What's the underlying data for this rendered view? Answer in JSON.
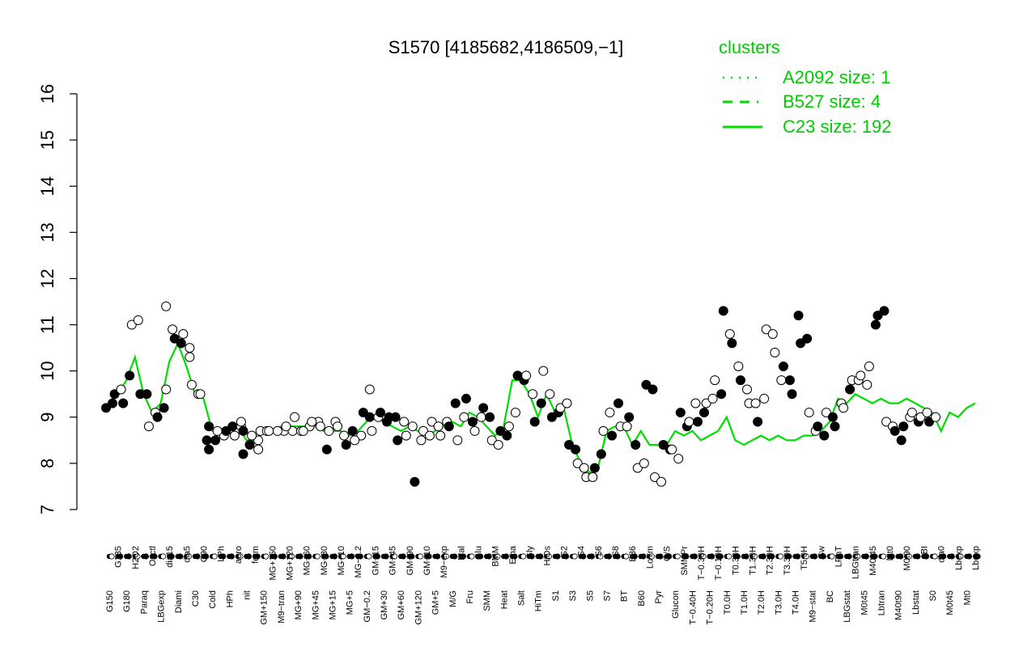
{
  "chart_data": {
    "type": "line",
    "title": "S1570 [4185682,4186509,−1]",
    "xlabel": "",
    "ylabel": "",
    "ylim": [
      7,
      16
    ],
    "yticks": [
      7,
      8,
      9,
      10,
      11,
      12,
      13,
      14,
      15,
      16
    ],
    "grid": false,
    "legend_position": "top-right",
    "legend": {
      "title": "clusters",
      "entries": [
        {
          "label": "A2092 size: 1",
          "style": "dotted"
        },
        {
          "label": "B527 size: 4",
          "style": "dashed"
        },
        {
          "label": "C23 size: 192",
          "style": "solid"
        }
      ]
    },
    "colors": {
      "line": "#00dd00",
      "legend": "#00cc00",
      "filled_point": "#000000",
      "open_point": "#ffffff"
    },
    "x_tick_labels": [
      "G150",
      "G135",
      "G180",
      "H2O2",
      "Paraq",
      "Oxctl",
      "LBGexp",
      "dia15",
      "Diami",
      "dia5",
      "C30",
      "C90",
      "Cold",
      "LPh",
      "HPh",
      "aero",
      "nit",
      "ferm",
      "GM+150",
      "MG+150",
      "M9−tran",
      "MG+120",
      "MG+90",
      "MG+60",
      "MG+45",
      "MG+30",
      "MG+15",
      "MG+10",
      "MG+5",
      "MG−0.2",
      "GM−0.2",
      "GM+15",
      "GM+30",
      "GM+45",
      "GM+60",
      "GM+90",
      "GM+120",
      "GM+10",
      "GM+5",
      "M9−exp",
      "M/G",
      "Mal",
      "Fru",
      "Glu",
      "SMM",
      "BMM",
      "Heat",
      "Etha",
      "Salt",
      "Gly",
      "HiTm",
      "HiOs",
      "S1",
      "S2",
      "S3",
      "S4",
      "S5",
      "S6",
      "S7",
      "S8",
      "BT",
      "B36",
      "B60",
      "LoTm",
      "Pyr",
      "G/S",
      "Glucon",
      "SMMPr",
      "T−0.40H",
      "T−0.30H",
      "T−0.20H",
      "T−0.10H",
      "T0.0H",
      "T0.30H",
      "T1.0H",
      "T1.30H",
      "T2.0H",
      "T2.30H",
      "T3.0H",
      "T3.30H",
      "T4.0H",
      "T5.0H",
      "M9−stat",
      "Sw",
      "BC",
      "LPhT",
      "LBGstat",
      "LBGtran",
      "M0t45",
      "M40t45",
      "Lbtran",
      "Mt0",
      "M40t90",
      "M0t90",
      "Lbstat",
      "BI",
      "S0",
      "dia0",
      "M0t45",
      "Lbexp",
      "Mt0",
      "Lbexp"
    ],
    "series": [
      {
        "values": [
          9.3,
          9.5,
          9.8,
          10.3,
          9.5,
          9.1,
          9.3,
          10.2,
          10.6,
          10.1,
          9.5,
          9.4,
          8.7,
          8.7,
          8.8,
          8.8,
          8.5,
          8.5,
          8.7,
          8.7,
          8.8,
          8.8,
          8.8,
          8.8,
          8.8,
          8.7,
          8.7,
          8.7,
          8.6,
          8.7,
          8.9,
          9.0,
          8.9,
          8.8,
          8.7,
          8.8,
          8.7,
          8.6,
          8.7,
          8.8,
          8.9,
          8.8,
          9.1,
          9.0,
          8.8,
          8.6,
          8.8,
          9.8,
          9.8,
          9.5,
          9.0,
          9.5,
          9.1,
          9.2,
          8.4,
          8.0,
          7.8,
          7.9,
          8.7,
          8.8,
          8.8,
          8.4,
          8.7,
          8.4,
          8.4,
          8.4,
          8.7,
          8.6,
          8.7,
          8.5,
          8.6,
          8.7,
          9.0,
          8.5,
          8.4,
          8.5,
          8.6,
          8.5,
          8.6,
          8.5,
          8.5,
          8.6,
          8.6,
          8.7,
          8.9,
          9.4,
          9.3,
          9.5,
          9.4,
          9.3,
          9.4,
          9.3,
          9.3,
          9.4,
          9.3,
          9.2,
          9.1,
          8.7,
          9.1,
          9.0,
          9.2,
          9.3
        ]
      }
    ],
    "points": [
      [
        0,
        9.2,
        1
      ],
      [
        0,
        9.3,
        1
      ],
      [
        1,
        9.5,
        1
      ],
      [
        1,
        9.6,
        0
      ],
      [
        2,
        9.3,
        1
      ],
      [
        2,
        9.9,
        1
      ],
      [
        3,
        11.0,
        0
      ],
      [
        3,
        11.1,
        0
      ],
      [
        4,
        9.5,
        1
      ],
      [
        4,
        9.5,
        1
      ],
      [
        5,
        8.8,
        0
      ],
      [
        5,
        9.1,
        0
      ],
      [
        6,
        9.0,
        1
      ],
      [
        6,
        9.2,
        1
      ],
      [
        7,
        9.6,
        0
      ],
      [
        7,
        10.9,
        0
      ],
      [
        7,
        11.4,
        0
      ],
      [
        8,
        10.6,
        1
      ],
      [
        8,
        10.7,
        1
      ],
      [
        9,
        10.5,
        0
      ],
      [
        9,
        10.8,
        0
      ],
      [
        9,
        10.3,
        0
      ],
      [
        10,
        9.7,
        0
      ],
      [
        10,
        9.5,
        0
      ],
      [
        11,
        9.5,
        0
      ],
      [
        11,
        8.5,
        1
      ],
      [
        12,
        8.8,
        1
      ],
      [
        12,
        8.5,
        1
      ],
      [
        12,
        8.3,
        1
      ],
      [
        13,
        8.6,
        0
      ],
      [
        13,
        8.7,
        0
      ],
      [
        14,
        8.8,
        1
      ],
      [
        14,
        8.7,
        1
      ],
      [
        15,
        8.8,
        0
      ],
      [
        15,
        8.6,
        0
      ],
      [
        15,
        8.9,
        0
      ],
      [
        16,
        8.7,
        1
      ],
      [
        16,
        8.4,
        1
      ],
      [
        16,
        8.2,
        1
      ],
      [
        17,
        8.5,
        0
      ],
      [
        17,
        8.6,
        0
      ],
      [
        17,
        8.3,
        0
      ],
      [
        18,
        8.7,
        0
      ],
      [
        18,
        8.7,
        0
      ],
      [
        19,
        8.7,
        0
      ],
      [
        20,
        8.7,
        0
      ],
      [
        20,
        8.7,
        0
      ],
      [
        21,
        8.7,
        0
      ],
      [
        21,
        8.8,
        0
      ],
      [
        22,
        8.7,
        0
      ],
      [
        22,
        9.0,
        0
      ],
      [
        23,
        8.8,
        0
      ],
      [
        23,
        8.7,
        0
      ],
      [
        24,
        8.9,
        0
      ],
      [
        24,
        8.9,
        0
      ],
      [
        25,
        8.3,
        1
      ],
      [
        25,
        8.8,
        0
      ],
      [
        26,
        8.9,
        0
      ],
      [
        26,
        8.7,
        0
      ],
      [
        27,
        8.6,
        0
      ],
      [
        27,
        8.8,
        0
      ],
      [
        28,
        8.7,
        1
      ],
      [
        28,
        8.4,
        1
      ],
      [
        29,
        8.6,
        0
      ],
      [
        29,
        8.5,
        0
      ],
      [
        30,
        9.0,
        1
      ],
      [
        30,
        9.1,
        1
      ],
      [
        30,
        9.6,
        0
      ],
      [
        31,
        8.7,
        0
      ],
      [
        31,
        9.0,
        0
      ],
      [
        32,
        9.1,
        1
      ],
      [
        32,
        8.9,
        1
      ],
      [
        33,
        9.0,
        1
      ],
      [
        33,
        9.0,
        1
      ],
      [
        34,
        8.5,
        1
      ],
      [
        34,
        8.9,
        0
      ],
      [
        35,
        8.6,
        0
      ],
      [
        35,
        8.8,
        0
      ],
      [
        36,
        7.6,
        1
      ],
      [
        36,
        8.5,
        0
      ],
      [
        37,
        8.7,
        0
      ],
      [
        37,
        8.6,
        0
      ],
      [
        38,
        8.9,
        0
      ],
      [
        38,
        8.8,
        0
      ],
      [
        39,
        8.6,
        0
      ],
      [
        39,
        8.9,
        0
      ],
      [
        40,
        8.8,
        1
      ],
      [
        40,
        9.3,
        1
      ],
      [
        41,
        8.5,
        0
      ],
      [
        41,
        9.0,
        0
      ],
      [
        42,
        9.4,
        1
      ],
      [
        42,
        8.9,
        1
      ],
      [
        43,
        8.7,
        0
      ],
      [
        43,
        9.0,
        0
      ],
      [
        44,
        9.2,
        1
      ],
      [
        44,
        9.0,
        1
      ],
      [
        45,
        8.5,
        0
      ],
      [
        45,
        8.4,
        0
      ],
      [
        46,
        8.7,
        1
      ],
      [
        46,
        8.6,
        1
      ],
      [
        47,
        8.8,
        0
      ],
      [
        47,
        9.1,
        0
      ],
      [
        48,
        9.9,
        1
      ],
      [
        48,
        9.8,
        1
      ],
      [
        49,
        9.9,
        0
      ],
      [
        49,
        9.5,
        0
      ],
      [
        50,
        8.9,
        1
      ],
      [
        50,
        9.3,
        1
      ],
      [
        51,
        10.0,
        0
      ],
      [
        51,
        9.5,
        0
      ],
      [
        52,
        9.0,
        1
      ],
      [
        52,
        9.1,
        1
      ],
      [
        53,
        9.2,
        0
      ],
      [
        53,
        9.3,
        0
      ],
      [
        54,
        8.4,
        1
      ],
      [
        54,
        8.3,
        1
      ],
      [
        55,
        8.0,
        0
      ],
      [
        55,
        7.9,
        0
      ],
      [
        56,
        7.7,
        0
      ],
      [
        56,
        7.7,
        0
      ],
      [
        57,
        7.9,
        1
      ],
      [
        57,
        8.2,
        1
      ],
      [
        58,
        8.7,
        0
      ],
      [
        58,
        9.1,
        0
      ],
      [
        59,
        8.6,
        1
      ],
      [
        59,
        9.3,
        1
      ],
      [
        60,
        8.8,
        0
      ],
      [
        60,
        8.8,
        0
      ],
      [
        61,
        9.0,
        1
      ],
      [
        61,
        8.4,
        1
      ],
      [
        62,
        7.9,
        0
      ],
      [
        62,
        8.0,
        0
      ],
      [
        63,
        9.7,
        1
      ],
      [
        63,
        9.6,
        1
      ],
      [
        64,
        7.7,
        0
      ],
      [
        64,
        7.6,
        0
      ],
      [
        65,
        8.4,
        1
      ],
      [
        65,
        8.3,
        1
      ],
      [
        66,
        8.3,
        0
      ],
      [
        66,
        8.1,
        0
      ],
      [
        67,
        9.1,
        1
      ],
      [
        67,
        8.8,
        1
      ],
      [
        68,
        8.9,
        0
      ],
      [
        68,
        9.3,
        0
      ],
      [
        69,
        8.9,
        1
      ],
      [
        69,
        9.1,
        1
      ],
      [
        70,
        9.3,
        0
      ],
      [
        70,
        9.4,
        0
      ],
      [
        71,
        9.8,
        0
      ],
      [
        71,
        9.5,
        1
      ],
      [
        72,
        11.3,
        1
      ],
      [
        72,
        10.8,
        0
      ],
      [
        73,
        10.6,
        1
      ],
      [
        73,
        10.1,
        0
      ],
      [
        74,
        9.8,
        1
      ],
      [
        74,
        9.6,
        0
      ],
      [
        75,
        9.3,
        0
      ],
      [
        75,
        9.3,
        0
      ],
      [
        76,
        8.9,
        1
      ],
      [
        76,
        9.4,
        0
      ],
      [
        77,
        10.9,
        0
      ],
      [
        77,
        10.8,
        0
      ],
      [
        78,
        10.4,
        0
      ],
      [
        78,
        9.8,
        0
      ],
      [
        79,
        10.1,
        1
      ],
      [
        79,
        9.8,
        1
      ],
      [
        80,
        9.5,
        1
      ],
      [
        80,
        11.2,
        1
      ],
      [
        81,
        10.6,
        1
      ],
      [
        81,
        10.7,
        1
      ],
      [
        82,
        9.1,
        0
      ],
      [
        82,
        8.7,
        0
      ],
      [
        83,
        8.8,
        1
      ],
      [
        83,
        8.6,
        1
      ],
      [
        84,
        9.1,
        0
      ],
      [
        84,
        9.0,
        1
      ],
      [
        85,
        8.8,
        1
      ],
      [
        85,
        9.3,
        0
      ],
      [
        86,
        9.2,
        0
      ],
      [
        86,
        9.6,
        1
      ],
      [
        87,
        9.8,
        0
      ],
      [
        87,
        9.8,
        0
      ],
      [
        88,
        9.9,
        0
      ],
      [
        88,
        9.7,
        0
      ],
      [
        89,
        10.1,
        0
      ],
      [
        89,
        11.0,
        1
      ],
      [
        90,
        11.2,
        1
      ],
      [
        90,
        11.3,
        1
      ],
      [
        91,
        8.9,
        0
      ],
      [
        91,
        8.8,
        0
      ],
      [
        92,
        8.7,
        1
      ],
      [
        92,
        8.5,
        1
      ],
      [
        93,
        8.8,
        1
      ],
      [
        93,
        9.0,
        0
      ],
      [
        94,
        9.1,
        0
      ],
      [
        94,
        8.9,
        1
      ],
      [
        95,
        9.0,
        0
      ],
      [
        95,
        9.1,
        0
      ],
      [
        96,
        8.9,
        1
      ],
      [
        96,
        9.0,
        0
      ]
    ]
  }
}
